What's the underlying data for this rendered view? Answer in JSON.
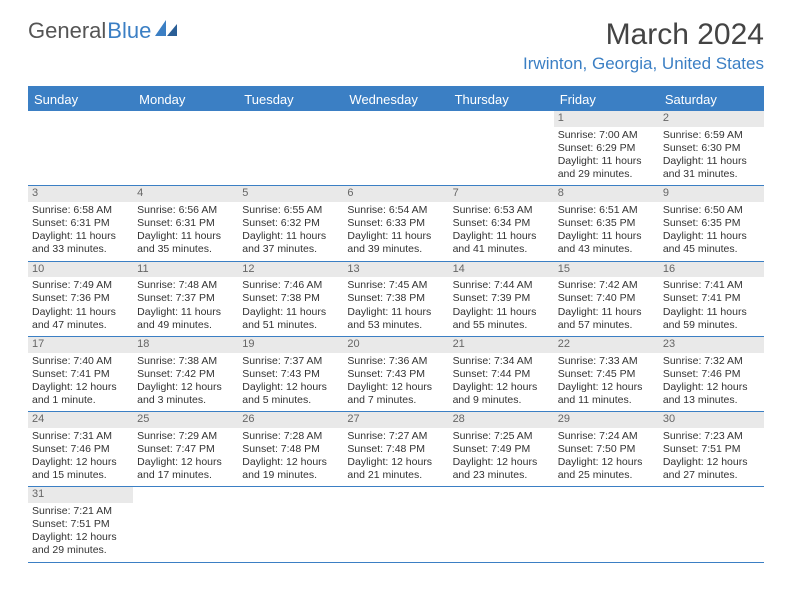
{
  "logo": {
    "text1": "General",
    "text2": "Blue"
  },
  "title": "March 2024",
  "location": "Irwinton, Georgia, United States",
  "colors": {
    "accent": "#3b7fc4",
    "header_bg": "#3b7fc4",
    "daynum_bg": "#e9e9e9",
    "text": "#333333",
    "muted": "#666666",
    "background": "#ffffff"
  },
  "daysOfWeek": [
    "Sunday",
    "Monday",
    "Tuesday",
    "Wednesday",
    "Thursday",
    "Friday",
    "Saturday"
  ],
  "calendar": {
    "first_day_of_week_index": 5,
    "days": [
      {
        "n": 1,
        "sunrise": "7:00 AM",
        "sunset": "6:29 PM",
        "daylight": "11 hours and 29 minutes."
      },
      {
        "n": 2,
        "sunrise": "6:59 AM",
        "sunset": "6:30 PM",
        "daylight": "11 hours and 31 minutes."
      },
      {
        "n": 3,
        "sunrise": "6:58 AM",
        "sunset": "6:31 PM",
        "daylight": "11 hours and 33 minutes."
      },
      {
        "n": 4,
        "sunrise": "6:56 AM",
        "sunset": "6:31 PM",
        "daylight": "11 hours and 35 minutes."
      },
      {
        "n": 5,
        "sunrise": "6:55 AM",
        "sunset": "6:32 PM",
        "daylight": "11 hours and 37 minutes."
      },
      {
        "n": 6,
        "sunrise": "6:54 AM",
        "sunset": "6:33 PM",
        "daylight": "11 hours and 39 minutes."
      },
      {
        "n": 7,
        "sunrise": "6:53 AM",
        "sunset": "6:34 PM",
        "daylight": "11 hours and 41 minutes."
      },
      {
        "n": 8,
        "sunrise": "6:51 AM",
        "sunset": "6:35 PM",
        "daylight": "11 hours and 43 minutes."
      },
      {
        "n": 9,
        "sunrise": "6:50 AM",
        "sunset": "6:35 PM",
        "daylight": "11 hours and 45 minutes."
      },
      {
        "n": 10,
        "sunrise": "7:49 AM",
        "sunset": "7:36 PM",
        "daylight": "11 hours and 47 minutes."
      },
      {
        "n": 11,
        "sunrise": "7:48 AM",
        "sunset": "7:37 PM",
        "daylight": "11 hours and 49 minutes."
      },
      {
        "n": 12,
        "sunrise": "7:46 AM",
        "sunset": "7:38 PM",
        "daylight": "11 hours and 51 minutes."
      },
      {
        "n": 13,
        "sunrise": "7:45 AM",
        "sunset": "7:38 PM",
        "daylight": "11 hours and 53 minutes."
      },
      {
        "n": 14,
        "sunrise": "7:44 AM",
        "sunset": "7:39 PM",
        "daylight": "11 hours and 55 minutes."
      },
      {
        "n": 15,
        "sunrise": "7:42 AM",
        "sunset": "7:40 PM",
        "daylight": "11 hours and 57 minutes."
      },
      {
        "n": 16,
        "sunrise": "7:41 AM",
        "sunset": "7:41 PM",
        "daylight": "11 hours and 59 minutes."
      },
      {
        "n": 17,
        "sunrise": "7:40 AM",
        "sunset": "7:41 PM",
        "daylight": "12 hours and 1 minute."
      },
      {
        "n": 18,
        "sunrise": "7:38 AM",
        "sunset": "7:42 PM",
        "daylight": "12 hours and 3 minutes."
      },
      {
        "n": 19,
        "sunrise": "7:37 AM",
        "sunset": "7:43 PM",
        "daylight": "12 hours and 5 minutes."
      },
      {
        "n": 20,
        "sunrise": "7:36 AM",
        "sunset": "7:43 PM",
        "daylight": "12 hours and 7 minutes."
      },
      {
        "n": 21,
        "sunrise": "7:34 AM",
        "sunset": "7:44 PM",
        "daylight": "12 hours and 9 minutes."
      },
      {
        "n": 22,
        "sunrise": "7:33 AM",
        "sunset": "7:45 PM",
        "daylight": "12 hours and 11 minutes."
      },
      {
        "n": 23,
        "sunrise": "7:32 AM",
        "sunset": "7:46 PM",
        "daylight": "12 hours and 13 minutes."
      },
      {
        "n": 24,
        "sunrise": "7:31 AM",
        "sunset": "7:46 PM",
        "daylight": "12 hours and 15 minutes."
      },
      {
        "n": 25,
        "sunrise": "7:29 AM",
        "sunset": "7:47 PM",
        "daylight": "12 hours and 17 minutes."
      },
      {
        "n": 26,
        "sunrise": "7:28 AM",
        "sunset": "7:48 PM",
        "daylight": "12 hours and 19 minutes."
      },
      {
        "n": 27,
        "sunrise": "7:27 AM",
        "sunset": "7:48 PM",
        "daylight": "12 hours and 21 minutes."
      },
      {
        "n": 28,
        "sunrise": "7:25 AM",
        "sunset": "7:49 PM",
        "daylight": "12 hours and 23 minutes."
      },
      {
        "n": 29,
        "sunrise": "7:24 AM",
        "sunset": "7:50 PM",
        "daylight": "12 hours and 25 minutes."
      },
      {
        "n": 30,
        "sunrise": "7:23 AM",
        "sunset": "7:51 PM",
        "daylight": "12 hours and 27 minutes."
      },
      {
        "n": 31,
        "sunrise": "7:21 AM",
        "sunset": "7:51 PM",
        "daylight": "12 hours and 29 minutes."
      }
    ]
  },
  "labels": {
    "sunrise": "Sunrise:",
    "sunset": "Sunset:",
    "daylight": "Daylight:"
  }
}
